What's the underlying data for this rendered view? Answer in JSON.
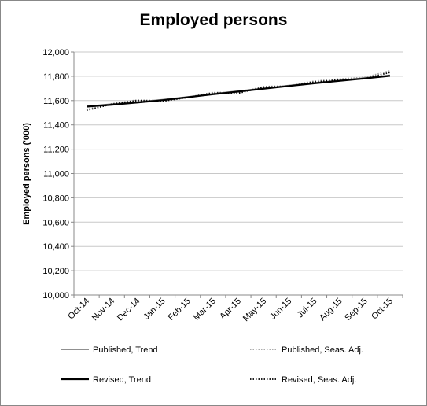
{
  "chart_data": {
    "type": "line",
    "title": "Employed persons",
    "xlabel": "",
    "ylabel": "Employed persons ('000)",
    "ylim": [
      10000,
      12000
    ],
    "yticks": [
      "10,000",
      "10,200",
      "10,400",
      "10,600",
      "10,800",
      "11,000",
      "11,200",
      "11,400",
      "11,600",
      "11,800",
      "12,000"
    ],
    "categories": [
      "Oct-14",
      "Nov-14",
      "Dec-14",
      "Jan-15",
      "Feb-15",
      "Mar-15",
      "Apr-15",
      "May-15",
      "Jun-15",
      "Jul-15",
      "Aug-15",
      "Sep-15",
      "Oct-15"
    ],
    "grid": true,
    "legend": "bottom",
    "series": [
      {
        "name": "Published, Trend",
        "color": "#808080",
        "style": "solid",
        "values": [
          11553,
          11570,
          11588,
          11607,
          11630,
          11655,
          11677,
          11700,
          11723,
          11745,
          11766,
          11786,
          11808
        ]
      },
      {
        "name": "Published, Seas. Adj.",
        "color": "#a0a0a0",
        "style": "dotted",
        "values": [
          11528,
          11575,
          11605,
          11598,
          11628,
          11667,
          11665,
          11715,
          11722,
          11760,
          11778,
          11790,
          11845
        ]
      },
      {
        "name": "Revised, Trend",
        "color": "#000000",
        "style": "solid",
        "values": [
          11550,
          11566,
          11584,
          11603,
          11627,
          11652,
          11674,
          11697,
          11720,
          11742,
          11762,
          11782,
          11803
        ]
      },
      {
        "name": "Revised, Seas. Adj.",
        "color": "#000000",
        "style": "dotted",
        "values": [
          11520,
          11570,
          11600,
          11595,
          11625,
          11663,
          11660,
          11710,
          11717,
          11753,
          11770,
          11780,
          11832
        ]
      }
    ]
  }
}
